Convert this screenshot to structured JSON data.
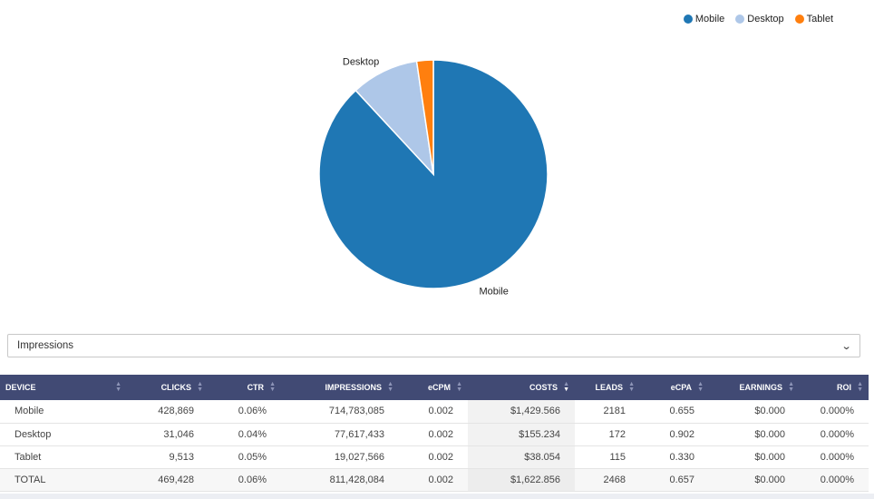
{
  "legend": [
    {
      "label": "Mobile",
      "color": "#1f77b4"
    },
    {
      "label": "Desktop",
      "color": "#aec7e8"
    },
    {
      "label": "Tablet",
      "color": "#ff7f0e"
    }
  ],
  "chart_data": {
    "type": "pie",
    "categories": [
      "Mobile",
      "Desktop",
      "Tablet"
    ],
    "values": [
      714783085,
      77617433,
      19027566
    ],
    "colors": [
      "#1f77b4",
      "#aec7e8",
      "#ff7f0e"
    ],
    "slice_labels": [
      "Mobile",
      "Desktop",
      ""
    ],
    "legend_position": "top-right"
  },
  "metric_select": {
    "value": "Impressions"
  },
  "table": {
    "headers": [
      "DEVICE",
      "CLICKS",
      "CTR",
      "IMPRESSIONS",
      "eCPM",
      "COSTS",
      "LEADS",
      "eCPA",
      "EARNINGS",
      "ROI"
    ],
    "rows": [
      [
        "Mobile",
        "428,869",
        "0.06%",
        "714,783,085",
        "0.002",
        "$1,429.566",
        "2181",
        "0.655",
        "$0.000",
        "0.000%"
      ],
      [
        "Desktop",
        "31,046",
        "0.04%",
        "77,617,433",
        "0.002",
        "$155.234",
        "172",
        "0.902",
        "$0.000",
        "0.000%"
      ],
      [
        "Tablet",
        "9,513",
        "0.05%",
        "19,027,566",
        "0.002",
        "$38.054",
        "115",
        "0.330",
        "$0.000",
        "0.000%"
      ]
    ],
    "total": [
      "TOTAL",
      "469,428",
      "0.06%",
      "811,428,084",
      "0.002",
      "$1,622.856",
      "2468",
      "0.657",
      "$0.000",
      "0.000%"
    ]
  }
}
